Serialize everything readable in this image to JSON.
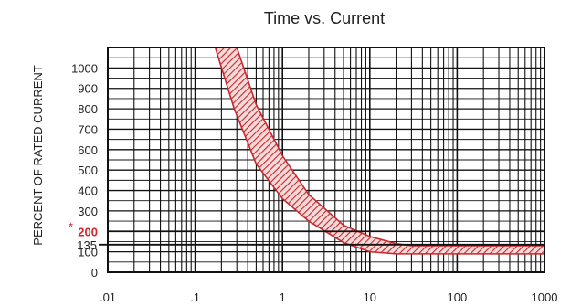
{
  "chart_data": {
    "type": "area",
    "title": "Time vs. Current",
    "ylabel": "PERCENT OF RATED CURRENT",
    "xlabel": "",
    "x_scale": "log",
    "xlim": [
      0.01,
      1000
    ],
    "ylim": [
      0,
      1100
    ],
    "grid": true,
    "x_tick_labels": [
      ".01",
      ".1",
      "1",
      "10",
      "100",
      "1000"
    ],
    "x_tick_values": [
      0.01,
      0.1,
      1,
      10,
      100,
      1000
    ],
    "y_tick_labels": [
      "0",
      "100",
      "200",
      "300",
      "400",
      "500",
      "600",
      "700",
      "800",
      "900",
      "1000"
    ],
    "y_tick_values": [
      0,
      100,
      200,
      300,
      400,
      500,
      600,
      700,
      800,
      900,
      1000
    ],
    "annotations": [
      {
        "text": "135",
        "y": 135,
        "kind": "reference-line"
      },
      {
        "text": "200",
        "y": 200,
        "kind": "highlight",
        "color": "#d3262b"
      },
      {
        "text": "*",
        "y": 200,
        "kind": "asterisk",
        "color": "#d3262b"
      }
    ],
    "band": {
      "color": "#c8282d",
      "lower": [
        {
          "x": 0.17,
          "y": 1100
        },
        {
          "x": 0.28,
          "y": 800
        },
        {
          "x": 0.5,
          "y": 530
        },
        {
          "x": 1,
          "y": 360
        },
        {
          "x": 2,
          "y": 250
        },
        {
          "x": 5,
          "y": 145
        },
        {
          "x": 10,
          "y": 100
        },
        {
          "x": 20,
          "y": 90
        },
        {
          "x": 1000,
          "y": 90
        }
      ],
      "upper": [
        {
          "x": 0.3,
          "y": 1100
        },
        {
          "x": 0.5,
          "y": 820
        },
        {
          "x": 1,
          "y": 570
        },
        {
          "x": 2,
          "y": 380
        },
        {
          "x": 5,
          "y": 230
        },
        {
          "x": 10,
          "y": 175
        },
        {
          "x": 20,
          "y": 140
        },
        {
          "x": 30,
          "y": 130
        },
        {
          "x": 1000,
          "y": 130
        }
      ]
    }
  }
}
